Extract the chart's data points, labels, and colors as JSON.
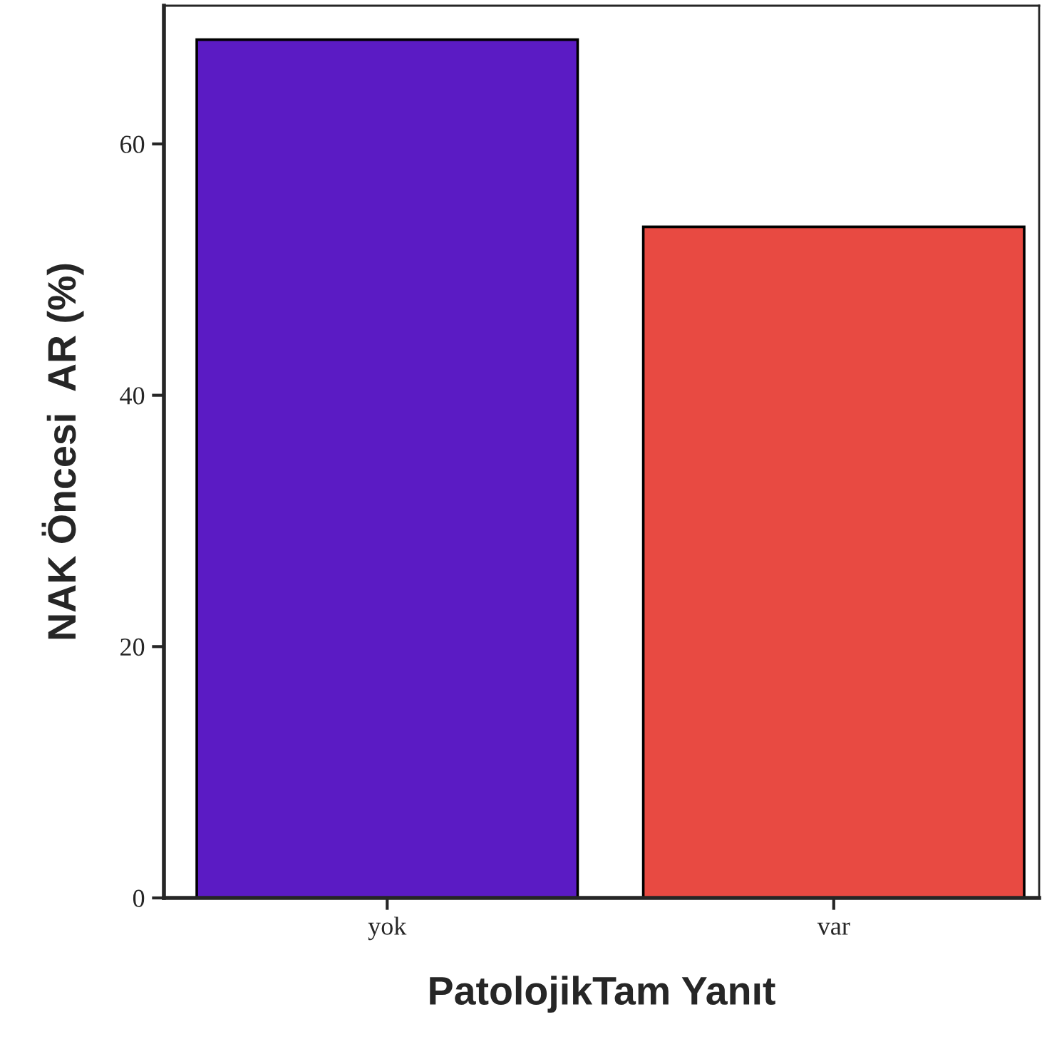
{
  "chart_data": {
    "type": "bar",
    "xlabel": "PatolojikTam Yanıt",
    "ylabel": "NAK Öncesi  AR (%)",
    "categories": [
      "yok",
      "var"
    ],
    "values": [
      68.3,
      53.4
    ],
    "colors": [
      "#5b1bc4",
      "#e84a42"
    ],
    "ylim": [
      0,
      71
    ],
    "yticks": [
      0,
      20,
      40,
      60
    ],
    "grid": false,
    "legend": false
  }
}
